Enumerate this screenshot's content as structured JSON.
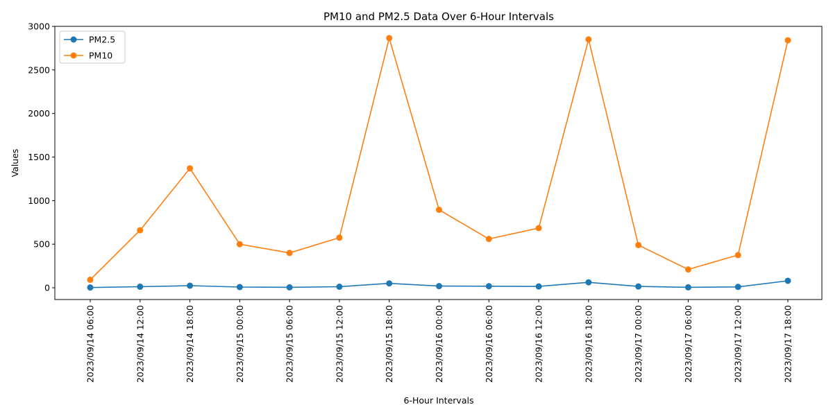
{
  "chart_data": {
    "type": "line",
    "title": "PM10 and PM2.5 Data Over 6-Hour Intervals",
    "xlabel": "6-Hour Intervals",
    "ylabel": "Values",
    "categories": [
      "2023/09/14 06:00",
      "2023/09/14 12:00",
      "2023/09/14 18:00",
      "2023/09/15 00:00",
      "2023/09/15 06:00",
      "2023/09/15 12:00",
      "2023/09/15 18:00",
      "2023/09/16 00:00",
      "2023/09/16 06:00",
      "2023/09/16 12:00",
      "2023/09/16 18:00",
      "2023/09/17 00:00",
      "2023/09/17 06:00",
      "2023/09/17 12:00",
      "2023/09/17 18:00"
    ],
    "series": [
      {
        "name": "PM2.5",
        "color": "#1f77b4",
        "values": [
          3,
          12,
          24,
          8,
          5,
          12,
          50,
          19,
          18,
          15,
          62,
          15,
          5,
          10,
          80
        ]
      },
      {
        "name": "PM10",
        "color": "#ff7f0e",
        "values": [
          92,
          660,
          1370,
          500,
          400,
          575,
          2865,
          895,
          560,
          685,
          2850,
          490,
          210,
          375,
          2840
        ]
      }
    ],
    "ylim": [
      -135,
      3000
    ],
    "yticks": [
      0,
      500,
      1000,
      1500,
      2000,
      2500,
      3000
    ],
    "grid": false,
    "legend_position": "top-left"
  }
}
